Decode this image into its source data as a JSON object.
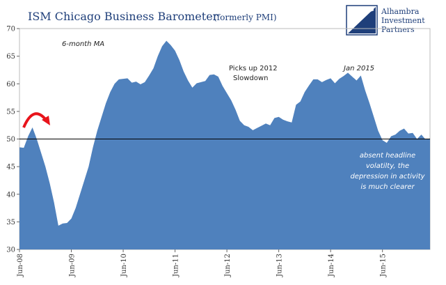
{
  "header": {
    "title": "ISM Chicago Business Barometer",
    "subtitle": "(formerly PMI)"
  },
  "logo": {
    "lines": [
      "Alhambra",
      "Investment",
      "Partners"
    ],
    "color": "#1f3f7a"
  },
  "annotations": {
    "ma_label": "6-month MA",
    "pickup_line1": "Picks up 2012",
    "pickup_line2": "Slowdown",
    "jan2015": "Jan 2015",
    "note_line1": "absent headline",
    "note_line2": "volatilty, the",
    "note_line3": "depression in activity",
    "note_line4": "is much clearer"
  },
  "colors": {
    "area_fill": "#4f81bd",
    "reference_line": "#000000",
    "arrow": "#e8141b",
    "title": "#1f3f7a"
  },
  "chart_data": {
    "type": "area",
    "ylim": [
      30,
      70
    ],
    "yticks": [
      30,
      35,
      40,
      45,
      50,
      55,
      60,
      65,
      70
    ],
    "reference_line": 50,
    "grid": false,
    "x_tick_labels": [
      "Jun-08",
      "Jun-09",
      "Jun-10",
      "Jun-11",
      "Jun-12",
      "Jun-13",
      "Jun-14",
      "Jun-15"
    ],
    "x_tick_index": [
      0,
      12,
      24,
      36,
      48,
      60,
      72,
      84
    ],
    "series": [
      {
        "values": [
          48.5,
          48.4,
          50.5,
          52.1,
          50.0,
          47.5,
          45.0,
          42.0,
          38.5,
          34.3,
          34.7,
          34.8,
          35.6,
          37.5,
          40.0,
          42.5,
          45.0,
          48.5,
          51.5,
          54.0,
          56.5,
          58.5,
          60.0,
          60.8,
          60.9,
          61.0,
          60.2,
          60.4,
          59.9,
          60.3,
          61.5,
          62.8,
          65.0,
          66.8,
          67.8,
          67.0,
          66.0,
          64.3,
          62.2,
          60.6,
          59.3,
          60.1,
          60.3,
          60.5,
          61.6,
          61.7,
          61.3,
          59.6,
          58.3,
          57.0,
          55.3,
          53.3,
          52.5,
          52.2,
          51.6,
          52.0,
          52.4,
          52.8,
          52.5,
          53.8,
          54.0,
          53.5,
          53.2,
          53.0,
          56.2,
          56.8,
          58.5,
          59.7,
          60.8,
          60.8,
          60.3,
          60.7,
          61.0,
          60.1,
          60.9,
          61.4,
          62.0,
          61.3,
          60.6,
          61.5,
          58.8,
          56.5,
          54.0,
          51.5,
          49.8,
          49.3,
          50.5,
          50.8,
          51.5,
          51.9,
          51.0,
          51.1,
          50.0,
          50.8,
          49.9,
          50.1
        ]
      }
    ]
  }
}
